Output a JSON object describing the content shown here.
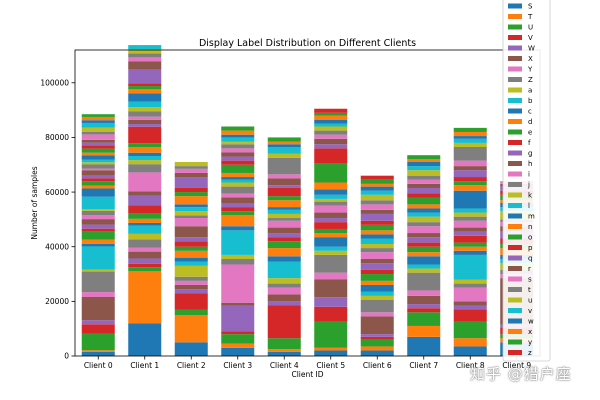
{
  "chart_data": {
    "type": "bar",
    "stacked": true,
    "title": "Display Label Distribution on Different Clients",
    "xlabel": "Client ID",
    "ylabel": "Number of samples",
    "ylim": [
      0,
      112000
    ],
    "yticks": [
      0,
      20000,
      40000,
      60000,
      80000,
      100000
    ],
    "ytick_labels": [
      "0",
      "20000",
      "40000",
      "60000",
      "80000",
      "100000"
    ],
    "categories": [
      "Client 0",
      "Client 1",
      "Client 2",
      "Client 3",
      "Client 4",
      "Client 5",
      "Client 6",
      "Client 7",
      "Client 8",
      "Client 9"
    ],
    "grid": false,
    "legend_position": "right (clipped at top)",
    "legend_labels": [
      "S",
      "T",
      "U",
      "V",
      "W",
      "X",
      "Y",
      "Z",
      "a",
      "b",
      "c",
      "d",
      "e",
      "f",
      "g",
      "h",
      "i",
      "j",
      "k",
      "l",
      "m",
      "n",
      "o",
      "p",
      "q",
      "r",
      "s",
      "t",
      "u",
      "v",
      "w",
      "x",
      "y",
      "z"
    ],
    "palette": [
      "#1f77b4",
      "#ff7f0e",
      "#2ca02c",
      "#d62728",
      "#9467bd",
      "#8c564b",
      "#e377c2",
      "#7f7f7f",
      "#bcbd22",
      "#17becf"
    ],
    "segments": [
      [
        1500,
        600,
        6000,
        3500,
        1500,
        8500,
        1800,
        7500,
        700,
        8500,
        1000,
        1500,
        3000,
        1000,
        1500,
        2000,
        1500,
        1500,
        700,
        4500,
        3000,
        1000,
        1700,
        1000,
        1000,
        2000,
        600,
        1500,
        800,
        1000,
        1500,
        1000,
        1500,
        1200,
        1000,
        1000,
        2000,
        1000,
        1500,
        1700,
        1000,
        1200,
        1000
      ],
      [
        12000,
        19000,
        1500,
        1200,
        2000,
        2500,
        1500,
        3000,
        2000,
        3000,
        1000,
        1500,
        2000,
        3000,
        3500,
        1500,
        7000,
        3000,
        1500,
        1500,
        1200,
        2000,
        1500,
        6000,
        1000,
        1500,
        1200,
        2000,
        1500,
        2000,
        3000,
        1500,
        1200,
        1000,
        5000,
        3000,
        1500,
        1500,
        1500,
        1500
      ],
      [
        5000,
        10000,
        2000,
        6000,
        1500,
        1500,
        1500,
        1500,
        4000,
        1500,
        1500,
        2500,
        1500,
        2000,
        1500,
        4000,
        3000,
        1000,
        1500,
        1500,
        1000,
        3000,
        1500,
        1500,
        4000,
        1500,
        1500,
        1000,
        1500
      ],
      [
        3000,
        1500,
        3500,
        1000,
        9500,
        1000,
        14000,
        2000,
        1500,
        9000,
        1500,
        4000,
        1500,
        1500,
        1500,
        2000,
        1500,
        2500,
        1500,
        1000,
        1000,
        1500,
        3000,
        1500,
        1500,
        1500,
        1500,
        1500,
        1000,
        1500,
        1000,
        1500,
        1500
      ],
      [
        1500,
        1000,
        4000,
        12000,
        1500,
        2500,
        2500,
        1500,
        2000,
        6000,
        2000,
        3000,
        2500,
        1500,
        1500,
        2000,
        2500,
        1000,
        1500,
        1500,
        1000,
        2500,
        1500,
        3000,
        1000,
        2500,
        1500,
        6000,
        1500,
        2500,
        1000,
        1000,
        1500
      ],
      [
        2000,
        1000,
        9500,
        5500,
        3500,
        6500,
        2500,
        6500,
        1500,
        1500,
        3500,
        1500,
        1500,
        2500,
        1500,
        2000,
        2500,
        1500,
        1000,
        1500,
        2000,
        2500,
        7000,
        5500,
        1500,
        2000,
        1500,
        1500,
        1500,
        1000,
        1500,
        1500,
        1000,
        1500
      ],
      [
        2000,
        1500,
        2500,
        1000,
        1000,
        6500,
        1500,
        4500,
        1500,
        1500,
        2500,
        1500,
        2500,
        1500,
        2500,
        1500,
        2500,
        1500,
        1500,
        2000,
        1500,
        1500,
        2000,
        1500,
        2500,
        1500,
        2000,
        1500,
        2000,
        1500,
        1500,
        1000,
        1500,
        1500
      ],
      [
        7000,
        4000,
        5000,
        1500,
        1500,
        3000,
        2000,
        6500,
        1500,
        1500,
        3000,
        1500,
        2000,
        1500,
        2000,
        1500,
        2500,
        1500,
        2000,
        1500,
        1500,
        1500,
        2500,
        1500,
        2000,
        1500,
        1500,
        1500,
        2000,
        1500,
        1500,
        1000,
        1500
      ],
      [
        3500,
        3000,
        6000,
        4500,
        1500,
        1500,
        5000,
        1500,
        1500,
        9000,
        1500,
        1500,
        1500,
        2500,
        1500,
        1500,
        2500,
        1500,
        1500,
        1500,
        6500,
        2000,
        1500,
        1500,
        2500,
        1500,
        2000,
        5000,
        1500,
        1500,
        1000,
        1500,
        1500
      ],
      [
        5000,
        1500,
        1500,
        2500,
        1000,
        17000,
        1500,
        1500,
        2500,
        1500,
        1500,
        2500,
        1500,
        2000,
        2500,
        2000,
        1500,
        1000,
        3000,
        1500,
        1500,
        1000,
        2000,
        1500,
        1500,
        1000,
        1000
      ]
    ]
  },
  "watermark": "知乎 @猎户座"
}
